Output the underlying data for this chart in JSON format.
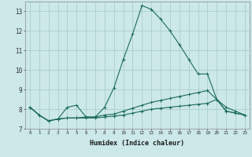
{
  "title": "",
  "xlabel": "Humidex (Indice chaleur)",
  "ylabel": "",
  "bg_color": "#cce8e8",
  "grid_color": "#aacece",
  "line_color": "#1a6b5a",
  "xlim": [
    -0.5,
    23.5
  ],
  "ylim": [
    7,
    13.5
  ],
  "yticks": [
    7,
    8,
    9,
    10,
    11,
    12,
    13
  ],
  "xticks": [
    0,
    1,
    2,
    3,
    4,
    5,
    6,
    7,
    8,
    9,
    10,
    11,
    12,
    13,
    14,
    15,
    16,
    17,
    18,
    19,
    20,
    21,
    22,
    23
  ],
  "series": [
    {
      "x": [
        0,
        1,
        2,
        3,
        4,
        5,
        6,
        7,
        8,
        9,
        10,
        11,
        12,
        13,
        14,
        15,
        16,
        17,
        18,
        19,
        20,
        21,
        22,
        23
      ],
      "y": [
        8.1,
        7.7,
        7.4,
        7.5,
        8.1,
        8.2,
        7.6,
        7.6,
        8.1,
        9.1,
        10.55,
        11.85,
        13.3,
        13.1,
        12.6,
        12.0,
        11.3,
        10.55,
        9.8,
        9.8,
        8.5,
        8.1,
        7.9,
        7.7
      ]
    },
    {
      "x": [
        0,
        1,
        2,
        3,
        4,
        5,
        6,
        7,
        8,
        9,
        10,
        11,
        12,
        13,
        14,
        15,
        16,
        17,
        18,
        19,
        20,
        21,
        22,
        23
      ],
      "y": [
        8.1,
        7.7,
        7.4,
        7.5,
        7.55,
        7.55,
        7.6,
        7.6,
        7.7,
        7.75,
        7.9,
        8.05,
        8.2,
        8.35,
        8.45,
        8.55,
        8.65,
        8.75,
        8.85,
        8.95,
        8.5,
        7.9,
        7.8,
        7.7
      ]
    },
    {
      "x": [
        0,
        1,
        2,
        3,
        4,
        5,
        6,
        7,
        8,
        9,
        10,
        11,
        12,
        13,
        14,
        15,
        16,
        17,
        18,
        19,
        20,
        21,
        22,
        23
      ],
      "y": [
        8.1,
        7.7,
        7.4,
        7.5,
        7.55,
        7.55,
        7.55,
        7.55,
        7.6,
        7.65,
        7.7,
        7.8,
        7.9,
        8.0,
        8.05,
        8.1,
        8.15,
        8.2,
        8.25,
        8.3,
        8.5,
        7.9,
        7.8,
        7.7
      ]
    }
  ]
}
